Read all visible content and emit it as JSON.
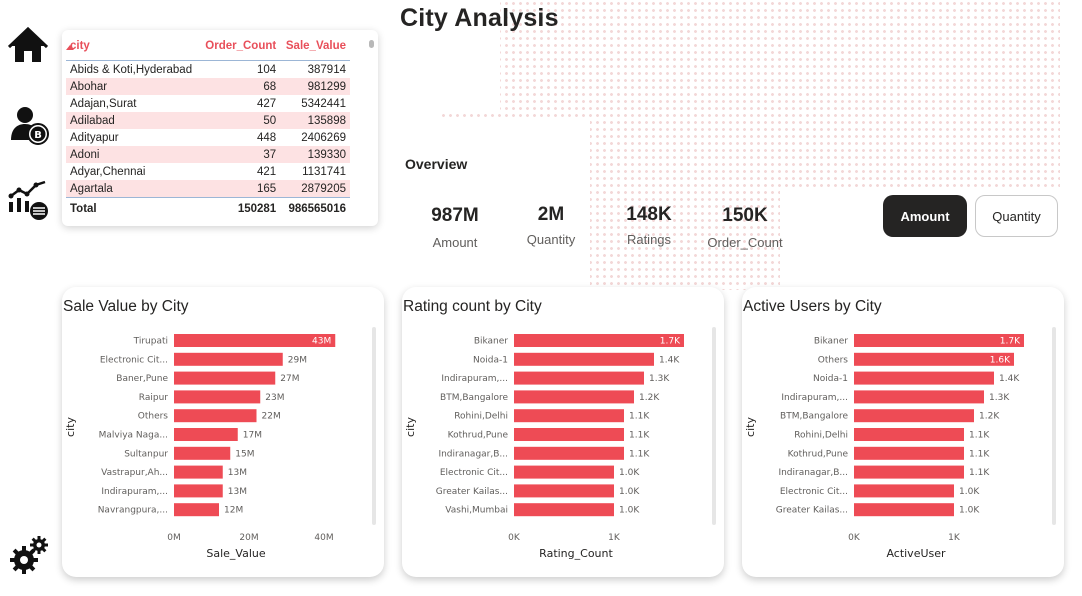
{
  "page_title": "City Analysis",
  "nav": [
    {
      "name": "home-icon"
    },
    {
      "name": "user-coin-icon"
    },
    {
      "name": "analytics-icon"
    },
    {
      "name": "settings-gears-icon"
    }
  ],
  "city_table": {
    "headers": [
      "city",
      "Order_Count",
      "Sale_Value"
    ],
    "rows": [
      [
        "Abids & Koti,Hyderabad",
        "104",
        "387914"
      ],
      [
        "Abohar",
        "68",
        "981299"
      ],
      [
        "Adajan,Surat",
        "427",
        "5342441"
      ],
      [
        "Adilabad",
        "50",
        "135898"
      ],
      [
        "Adityapur",
        "448",
        "2406269"
      ],
      [
        "Adoni",
        "37",
        "139330"
      ],
      [
        "Adyar,Chennai",
        "421",
        "1131741"
      ],
      [
        "Agartala",
        "165",
        "2879205"
      ]
    ],
    "total": [
      "Total",
      "150281",
      "986565016"
    ]
  },
  "overview": {
    "heading": "Overview",
    "kpis": [
      {
        "value": "987M",
        "label": "Amount"
      },
      {
        "value": "2M",
        "label": "Quantity"
      },
      {
        "value": "148K",
        "label": "Ratings"
      },
      {
        "value": "150K",
        "label": "Order_Count"
      }
    ]
  },
  "toggles": {
    "amount": "Amount",
    "quantity": "Quantity",
    "selected": "Amount"
  },
  "colors": {
    "accent": "#e84f5a",
    "bar": "#ee4b55",
    "dark": "#252423",
    "row_alt": "#fde2e3"
  },
  "chart_data": [
    {
      "type": "bar",
      "title": "Sale Value by City",
      "ylabel": "city",
      "xlabel": "Sale_Value",
      "categories": [
        "Tirupati",
        "Electronic Cit...",
        "Baner,Pune",
        "Raipur",
        "Others",
        "Malviya Naga...",
        "Sultanpur",
        "Vastrapur,Ah...",
        "Indirapuram,...",
        "Navrangpura,..."
      ],
      "values": [
        43000000,
        29000000,
        27000000,
        23000000,
        22000000,
        17000000,
        15000000,
        13000000,
        13000000,
        12000000
      ],
      "data_labels": [
        "43M",
        "29M",
        "27M",
        "23M",
        "22M",
        "17M",
        "15M",
        "13M",
        "13M",
        "12M"
      ],
      "xlim": [
        0,
        48000000
      ],
      "xticks": [
        0,
        20000000,
        40000000
      ],
      "xtick_labels": [
        "0M",
        "20M",
        "40M"
      ]
    },
    {
      "type": "bar",
      "title": "Rating count by City",
      "ylabel": "city",
      "xlabel": "Rating_Count",
      "categories": [
        "Bikaner",
        "Noida-1",
        "Indirapuram,...",
        "BTM,Bangalore",
        "Rohini,Delhi",
        "Kothrud,Pune",
        "Indiranagar,B...",
        "Electronic Cit...",
        "Greater Kailas...",
        "Vashi,Mumbai"
      ],
      "values": [
        1700,
        1400,
        1300,
        1200,
        1100,
        1100,
        1100,
        1000,
        1000,
        1000
      ],
      "data_labels": [
        "1.7K",
        "1.4K",
        "1.3K",
        "1.2K",
        "1.1K",
        "1.1K",
        "1.1K",
        "1.0K",
        "1.0K",
        "1.0K"
      ],
      "xlim": [
        0,
        1800
      ],
      "xticks": [
        0,
        1000
      ],
      "xtick_labels": [
        "0K",
        "1K"
      ]
    },
    {
      "type": "bar",
      "title": "Active Users by City",
      "ylabel": "city",
      "xlabel": "ActiveUser",
      "categories": [
        "Bikaner",
        "Others",
        "Noida-1",
        "Indirapuram,...",
        "BTM,Bangalore",
        "Rohini,Delhi",
        "Kothrud,Pune",
        "Indiranagar,B...",
        "Electronic Cit...",
        "Greater Kailas..."
      ],
      "values": [
        1700,
        1600,
        1400,
        1300,
        1200,
        1100,
        1100,
        1100,
        1000,
        1000
      ],
      "data_labels": [
        "1.7K",
        "1.6K",
        "1.4K",
        "1.3K",
        "1.2K",
        "1.1K",
        "1.1K",
        "1.1K",
        "1.0K",
        "1.0K"
      ],
      "xlim": [
        0,
        1800
      ],
      "xticks": [
        0,
        1000
      ],
      "xtick_labels": [
        "0K",
        "1K"
      ]
    }
  ]
}
